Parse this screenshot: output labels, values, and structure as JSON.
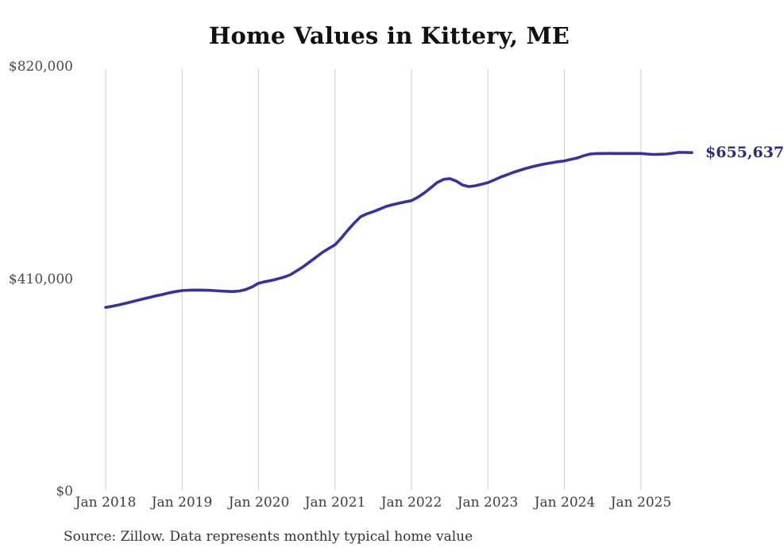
{
  "page": {
    "title": "Home Values in Kittery, ME",
    "source_note": "Source: Zillow. Data represents monthly typical home value"
  },
  "colors": {
    "line": "#3632a2",
    "end_label_text": "#2d2a8a",
    "gridline": "#cccccc",
    "axis_text": "#3c3c3c",
    "title_text": "#111111"
  },
  "end_label": "$655,637",
  "chart_data": {
    "type": "line",
    "title": "Home Values in Kittery, ME",
    "xlabel": "",
    "ylabel": "",
    "x_frequency": "monthly",
    "x_start": "Jan 2018",
    "x_end": "Sep 2025",
    "x_tick_labels": [
      "Jan 2018",
      "Jan 2019",
      "Jan 2020",
      "Jan 2021",
      "Jan 2022",
      "Jan 2023",
      "Jan 2024",
      "Jan 2025"
    ],
    "y_ticks": [
      {
        "label": "$820,000",
        "value": 820000
      },
      {
        "label": "$410,000",
        "value": 410000
      },
      {
        "label": "$0",
        "value": 0
      }
    ],
    "ylim": [
      0,
      820000
    ],
    "grid": "vertical-only",
    "legend": "none",
    "last_value": 655637,
    "last_value_label": "$655,637",
    "series": [
      {
        "name": "Monthly typical home value",
        "values": [
          357000,
          359000,
          361500,
          364500,
          367500,
          370500,
          373500,
          376500,
          379500,
          382000,
          385000,
          387500,
          389300,
          390100,
          390400,
          390300,
          389900,
          389300,
          388600,
          387900,
          387500,
          388500,
          391500,
          396500,
          403600,
          406500,
          409000,
          412000,
          415400,
          420000,
          427700,
          435500,
          444500,
          453500,
          462900,
          470500,
          477700,
          491000,
          505800,
          519500,
          531800,
          537500,
          541600,
          546500,
          551800,
          555000,
          557900,
          560500,
          563000,
          569500,
          577800,
          587500,
          597800,
          603900,
          605500,
          600900,
          593200,
          590100,
          591600,
          594700,
          597800,
          603000,
          608500,
          613000,
          617700,
          621500,
          625400,
          628500,
          631500,
          634000,
          636100,
          638000,
          639700,
          642500,
          645300,
          649500,
          653000,
          653800,
          654000,
          654200,
          654000,
          654000,
          654000,
          654000,
          654000,
          653000,
          652200,
          652500,
          653000,
          654500,
          656100,
          656000,
          655637
        ]
      }
    ]
  }
}
